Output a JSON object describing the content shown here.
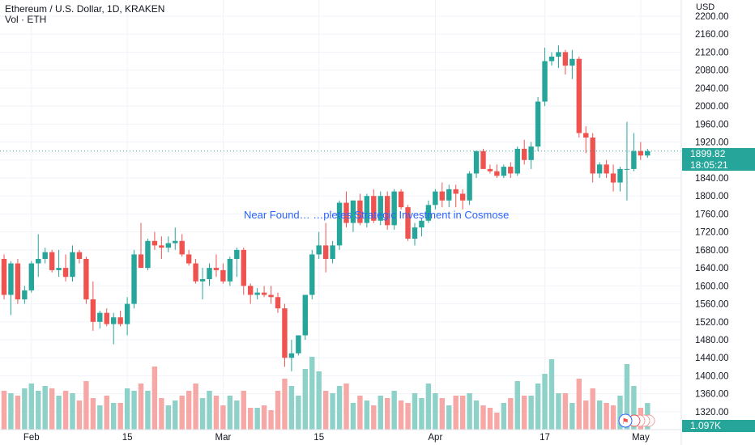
{
  "header": {
    "title": "Ethereum / U.S. Dollar, 1D, KRAKEN",
    "volume_label": "Vol · ETH"
  },
  "news": {
    "headline": "Near Found… …pletes Strategic Investment in Cosmose"
  },
  "price_tag": {
    "value": "1899.82",
    "countdown": "18:05:21"
  },
  "volume_tag": {
    "value": "1.097K"
  },
  "colors": {
    "up": "#26a69a",
    "down": "#ef5350",
    "up_vol": "#8ed1c9",
    "down_vol": "#f5a8a5",
    "grid": "#f0f3fa",
    "current": "#26a69a"
  },
  "chart_data": {
    "type": "candlestick",
    "yunit": "USD",
    "ylim": [
      1300,
      2200
    ],
    "yticks": [
      2200,
      2160,
      2120,
      2080,
      2040,
      2000,
      1960,
      1920,
      1880,
      1840,
      1800,
      1760,
      1720,
      1680,
      1640,
      1600,
      1560,
      1520,
      1480,
      1440,
      1400,
      1360,
      1320
    ],
    "xtick_labels": [
      {
        "label": "Feb",
        "index": 4
      },
      {
        "label": "15",
        "index": 18
      },
      {
        "label": "Mar",
        "index": 32
      },
      {
        "label": "15",
        "index": 46
      },
      {
        "label": "Apr",
        "index": 63
      },
      {
        "label": "17",
        "index": 79
      },
      {
        "label": "May",
        "index": 93
      }
    ],
    "index_range": [
      0,
      95
    ],
    "current_price": 1899.82,
    "candles": [
      [
        1660,
        1670,
        1570,
        1580,
        1.6
      ],
      [
        1580,
        1655,
        1535,
        1650,
        1.5
      ],
      [
        1650,
        1660,
        1560,
        1570,
        1.4
      ],
      [
        1570,
        1600,
        1560,
        1590,
        1.7
      ],
      [
        1590,
        1655,
        1585,
        1650,
        1.9
      ],
      [
        1650,
        1715,
        1620,
        1660,
        1.6
      ],
      [
        1660,
        1685,
        1650,
        1675,
        1.8
      ],
      [
        1675,
        1680,
        1630,
        1635,
        1.7
      ],
      [
        1635,
        1680,
        1620,
        1640,
        1.4
      ],
      [
        1640,
        1670,
        1610,
        1620,
        1.6
      ],
      [
        1620,
        1690,
        1610,
        1675,
        1.5
      ],
      [
        1675,
        1680,
        1650,
        1660,
        1.2
      ],
      [
        1660,
        1665,
        1560,
        1570,
        2.0
      ],
      [
        1570,
        1610,
        1500,
        1520,
        1.3
      ],
      [
        1520,
        1545,
        1505,
        1540,
        1.0
      ],
      [
        1540,
        1550,
        1510,
        1515,
        1.4
      ],
      [
        1515,
        1540,
        1470,
        1530,
        1.1
      ],
      [
        1530,
        1545,
        1510,
        1515,
        1.1
      ],
      [
        1515,
        1575,
        1490,
        1560,
        1.7
      ],
      [
        1560,
        1680,
        1550,
        1670,
        1.6
      ],
      [
        1670,
        1740,
        1640,
        1640,
        1.9
      ],
      [
        1640,
        1705,
        1635,
        1700,
        1.6
      ],
      [
        1700,
        1720,
        1680,
        1690,
        2.6
      ],
      [
        1690,
        1710,
        1660,
        1685,
        1.3
      ],
      [
        1685,
        1710,
        1675,
        1695,
        1.0
      ],
      [
        1695,
        1730,
        1680,
        1700,
        1.2
      ],
      [
        1700,
        1715,
        1665,
        1670,
        1.4
      ],
      [
        1670,
        1680,
        1645,
        1650,
        1.6
      ],
      [
        1650,
        1660,
        1605,
        1610,
        1.9
      ],
      [
        1610,
        1640,
        1570,
        1615,
        1.3
      ],
      [
        1615,
        1650,
        1600,
        1640,
        1.6
      ],
      [
        1640,
        1670,
        1620,
        1635,
        1.4
      ],
      [
        1635,
        1650,
        1605,
        1610,
        1.0
      ],
      [
        1610,
        1665,
        1600,
        1660,
        1.4
      ],
      [
        1660,
        1685,
        1620,
        1680,
        1.2
      ],
      [
        1680,
        1685,
        1580,
        1600,
        1.6
      ],
      [
        1600,
        1605,
        1560,
        1580,
        0.9
      ],
      [
        1580,
        1595,
        1570,
        1585,
        0.9
      ],
      [
        1585,
        1600,
        1575,
        1580,
        1.0
      ],
      [
        1580,
        1600,
        1560,
        1575,
        0.8
      ],
      [
        1575,
        1585,
        1540,
        1550,
        1.6
      ],
      [
        1550,
        1560,
        1420,
        1440,
        2.1
      ],
      [
        1440,
        1480,
        1410,
        1450,
        1.8
      ],
      [
        1450,
        1490,
        1445,
        1490,
        1.4
      ],
      [
        1490,
        1580,
        1480,
        1580,
        2.5
      ],
      [
        1580,
        1680,
        1570,
        1670,
        3.0
      ],
      [
        1670,
        1720,
        1660,
        1690,
        2.4
      ],
      [
        1690,
        1740,
        1630,
        1660,
        1.6
      ],
      [
        1660,
        1700,
        1650,
        1690,
        1.5
      ],
      [
        1690,
        1790,
        1680,
        1785,
        1.8
      ],
      [
        1785,
        1810,
        1730,
        1740,
        1.9
      ],
      [
        1740,
        1790,
        1720,
        1790,
        1.1
      ],
      [
        1790,
        1805,
        1735,
        1740,
        1.4
      ],
      [
        1740,
        1805,
        1730,
        1800,
        1.2
      ],
      [
        1800,
        1815,
        1740,
        1745,
        1.0
      ],
      [
        1745,
        1810,
        1735,
        1800,
        1.4
      ],
      [
        1800,
        1810,
        1725,
        1735,
        1.3
      ],
      [
        1735,
        1815,
        1725,
        1810,
        1.6
      ],
      [
        1810,
        1815,
        1770,
        1775,
        1.2
      ],
      [
        1775,
        1780,
        1700,
        1705,
        1.1
      ],
      [
        1705,
        1740,
        1690,
        1730,
        1.5
      ],
      [
        1730,
        1750,
        1710,
        1745,
        1.3
      ],
      [
        1745,
        1790,
        1740,
        1780,
        1.9
      ],
      [
        1780,
        1815,
        1770,
        1810,
        1.5
      ],
      [
        1810,
        1830,
        1775,
        1790,
        1.3
      ],
      [
        1790,
        1825,
        1775,
        1815,
        1.0
      ],
      [
        1815,
        1825,
        1775,
        1805,
        1.4
      ],
      [
        1805,
        1815,
        1770,
        1790,
        1.4
      ],
      [
        1790,
        1855,
        1780,
        1850,
        1.5
      ],
      [
        1850,
        1900,
        1840,
        1900,
        1.2
      ],
      [
        1900,
        1905,
        1860,
        1860,
        1.0
      ],
      [
        1860,
        1870,
        1850,
        1855,
        0.9
      ],
      [
        1855,
        1870,
        1840,
        1845,
        0.7
      ],
      [
        1845,
        1870,
        1840,
        1865,
        1.1
      ],
      [
        1865,
        1875,
        1840,
        1850,
        1.3
      ],
      [
        1850,
        1910,
        1845,
        1905,
        2.0
      ],
      [
        1905,
        1925,
        1870,
        1880,
        1.4
      ],
      [
        1880,
        1920,
        1860,
        1910,
        1.4
      ],
      [
        1910,
        2020,
        1900,
        2010,
        1.9
      ],
      [
        2010,
        2130,
        2000,
        2100,
        2.3
      ],
      [
        2100,
        2120,
        2090,
        2110,
        2.9
      ],
      [
        2110,
        2135,
        2085,
        2120,
        1.5
      ],
      [
        2120,
        2125,
        2070,
        2090,
        1.5
      ],
      [
        2090,
        2125,
        2060,
        2105,
        1.1
      ],
      [
        2105,
        2110,
        1930,
        1940,
        2.1
      ],
      [
        1940,
        1955,
        1895,
        1930,
        1.2
      ],
      [
        1930,
        1940,
        1830,
        1850,
        1.7
      ],
      [
        1850,
        1875,
        1840,
        1870,
        1.2
      ],
      [
        1870,
        1880,
        1840,
        1850,
        1.1
      ],
      [
        1850,
        1870,
        1810,
        1830,
        1.0
      ],
      [
        1830,
        1865,
        1810,
        1860,
        1.4
      ],
      [
        1860,
        1965,
        1790,
        1860,
        2.7
      ],
      [
        1860,
        1940,
        1855,
        1900,
        1.8
      ],
      [
        1900,
        1920,
        1880,
        1890,
        0.9
      ],
      [
        1890,
        1905,
        1885,
        1899.82,
        1.097
      ]
    ]
  }
}
